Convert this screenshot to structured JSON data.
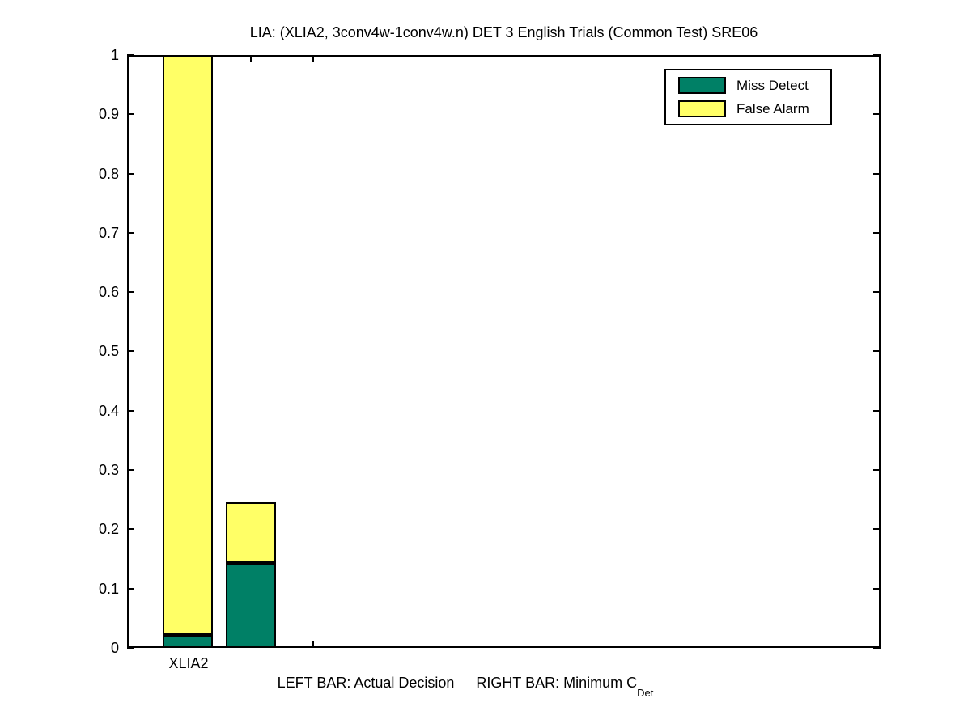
{
  "figure": {
    "title": "LIA: (XLIA2, 3conv4w-1conv4w.n) DET 3 English Trials (Common Test) SRE06",
    "background_color": "#ffffff",
    "axis_color": "#000000"
  },
  "legend": {
    "position": "upper-right",
    "items": [
      {
        "label": "Miss Detect",
        "color": "#008066"
      },
      {
        "label": "False Alarm",
        "color": "#ffff66"
      }
    ]
  },
  "caption": {
    "left_bar": "LEFT BAR: Actual Decision",
    "right_bar": "RIGHT BAR: Minimum C",
    "right_bar_subscript": "Det"
  },
  "chart_data": {
    "type": "bar",
    "stacked": true,
    "title": "LIA: (XLIA2, 3conv4w-1conv4w.n) DET 3 English Trials (Common Test) SRE06",
    "categories": [
      "XLIA2"
    ],
    "bars": [
      {
        "name": "Actual Decision",
        "system": "XLIA2",
        "position": 1.0,
        "miss_detect": 0.022,
        "false_alarm": 0.978,
        "stack_total": 1.0
      },
      {
        "name": "Minimum C_Det",
        "system": "XLIA2",
        "position": 1.5,
        "miss_detect": 0.143,
        "false_alarm": 0.102,
        "stack_total": 0.245
      }
    ],
    "series": [
      {
        "name": "Miss Detect",
        "color": "#008066",
        "values": [
          0.022,
          0.143
        ]
      },
      {
        "name": "False Alarm",
        "color": "#ffff66",
        "values": [
          0.978,
          0.102
        ]
      }
    ],
    "bar_width_units": 0.4,
    "ylim": [
      0,
      1
    ],
    "xlim": [
      0.52,
      6.52
    ],
    "yticks": [
      0,
      0.1,
      0.2,
      0.3,
      0.4,
      0.5,
      0.6,
      0.7,
      0.8,
      0.9,
      1
    ],
    "ytick_labels": [
      "0",
      "0.1",
      "0.2",
      "0.3",
      "0.4",
      "0.5",
      "0.6",
      "0.7",
      "0.8",
      "0.9",
      "1"
    ],
    "xticks": [
      1,
      1.5,
      2
    ],
    "xtick_labels": [
      "XLIA2",
      "",
      ""
    ],
    "grid": false,
    "legend_entries": [
      "Miss Detect",
      "False Alarm"
    ],
    "xlabel": "LEFT BAR: Actual Decision     RIGHT BAR: Minimum C_Det",
    "ylabel": ""
  }
}
